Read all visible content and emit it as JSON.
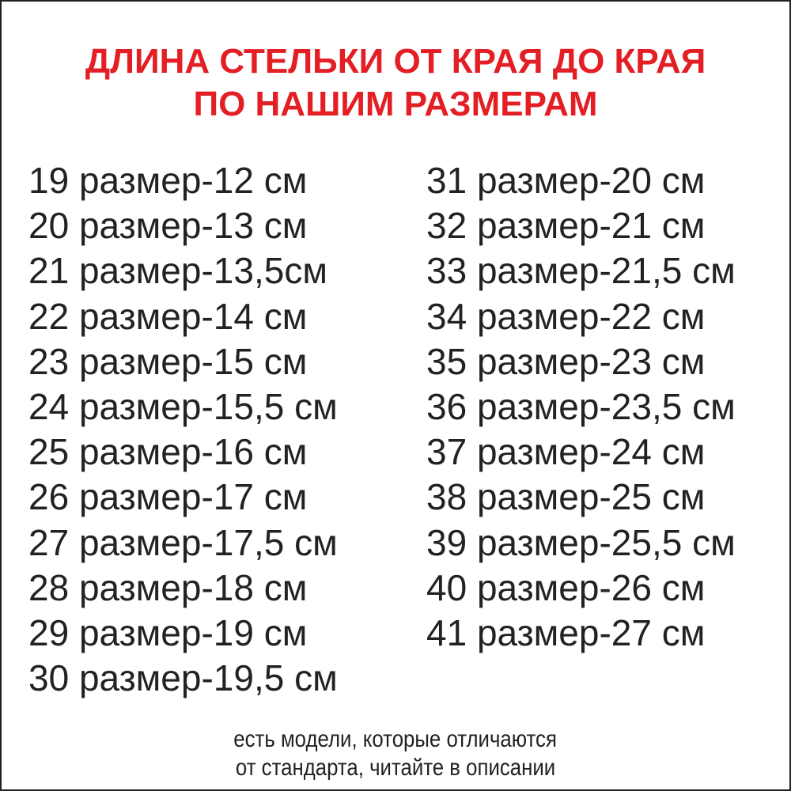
{
  "title": {
    "line1": "ДЛИНА СТЕЛЬКИ ОТ КРАЯ ДО КРАЯ",
    "line2": "ПО НАШИМ РАЗМЕРАМ",
    "color": "#e31e24"
  },
  "sizes_left": [
    "19 размер-12 см",
    "20 размер-13 см",
    "21 размер-13,5см",
    "22 размер-14 см",
    "23 размер-15 см",
    "24 размер-15,5 см",
    "25 размер-16 см",
    "26 размер-17 см",
    "27 размер-17,5 см",
    "28 размер-18 см",
    "29 размер-19 см",
    "30 размер-19,5 см"
  ],
  "sizes_right": [
    "31 размер-20 см",
    "32 размер-21 см",
    "33 размер-21,5 см",
    "34 размер-22 см",
    "35 размер-23 см",
    "36 размер-23,5 см",
    "37 размер-24 см",
    "38 размер-25 см",
    "39 размер-25,5 см",
    "40 размер-26 см",
    "41 размер-27 см"
  ],
  "note": {
    "line1": "есть модели, которые отличаются",
    "line2": "от стандарта, читайте в описании"
  }
}
